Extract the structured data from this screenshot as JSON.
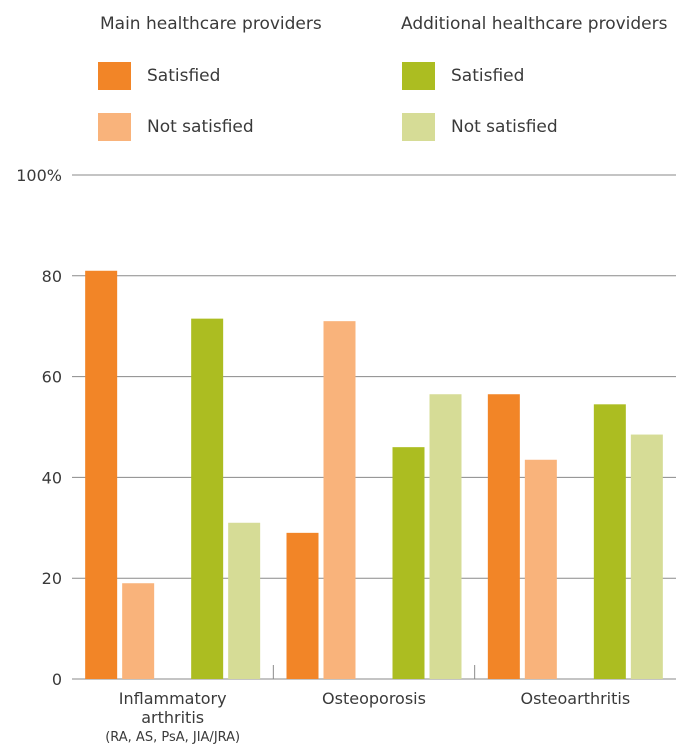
{
  "legend": {
    "groups": [
      {
        "title": "Main healthcare providers",
        "items": [
          {
            "label": "Satisfied",
            "color": "#f28527"
          },
          {
            "label": "Not satisfied",
            "color": "#f9b37b"
          }
        ]
      },
      {
        "title": "Additional healthcare providers",
        "items": [
          {
            "label": "Satisfied",
            "color": "#acbd21"
          },
          {
            "label": "Not satisfied",
            "color": "#d6dc96"
          }
        ]
      }
    ]
  },
  "chart_data": {
    "type": "bar",
    "categories": [
      [
        "Inflammatory",
        "arthritis",
        "(RA, AS, PsA, JIA/JRA)"
      ],
      [
        "Osteoporosis"
      ],
      [
        "Osteoarthritis"
      ]
    ],
    "series": [
      {
        "name": "Main healthcare providers – Satisfied",
        "color": "#f28527",
        "values": [
          81,
          29,
          56.5
        ]
      },
      {
        "name": "Main healthcare providers – Not satisfied",
        "color": "#f9b37b",
        "values": [
          19,
          71,
          43.5
        ]
      },
      {
        "name": "Additional healthcare providers – Satisfied",
        "color": "#acbd21",
        "values": [
          71.5,
          46,
          54.5
        ]
      },
      {
        "name": "Additional healthcare providers – Not satisfied",
        "color": "#d6dc96",
        "values": [
          31,
          56.5,
          48.5
        ]
      }
    ],
    "yticks": [
      "0",
      "20",
      "40",
      "60",
      "80",
      "100%"
    ],
    "ylim": [
      0,
      100
    ],
    "grid": true,
    "legend_position": "top"
  }
}
